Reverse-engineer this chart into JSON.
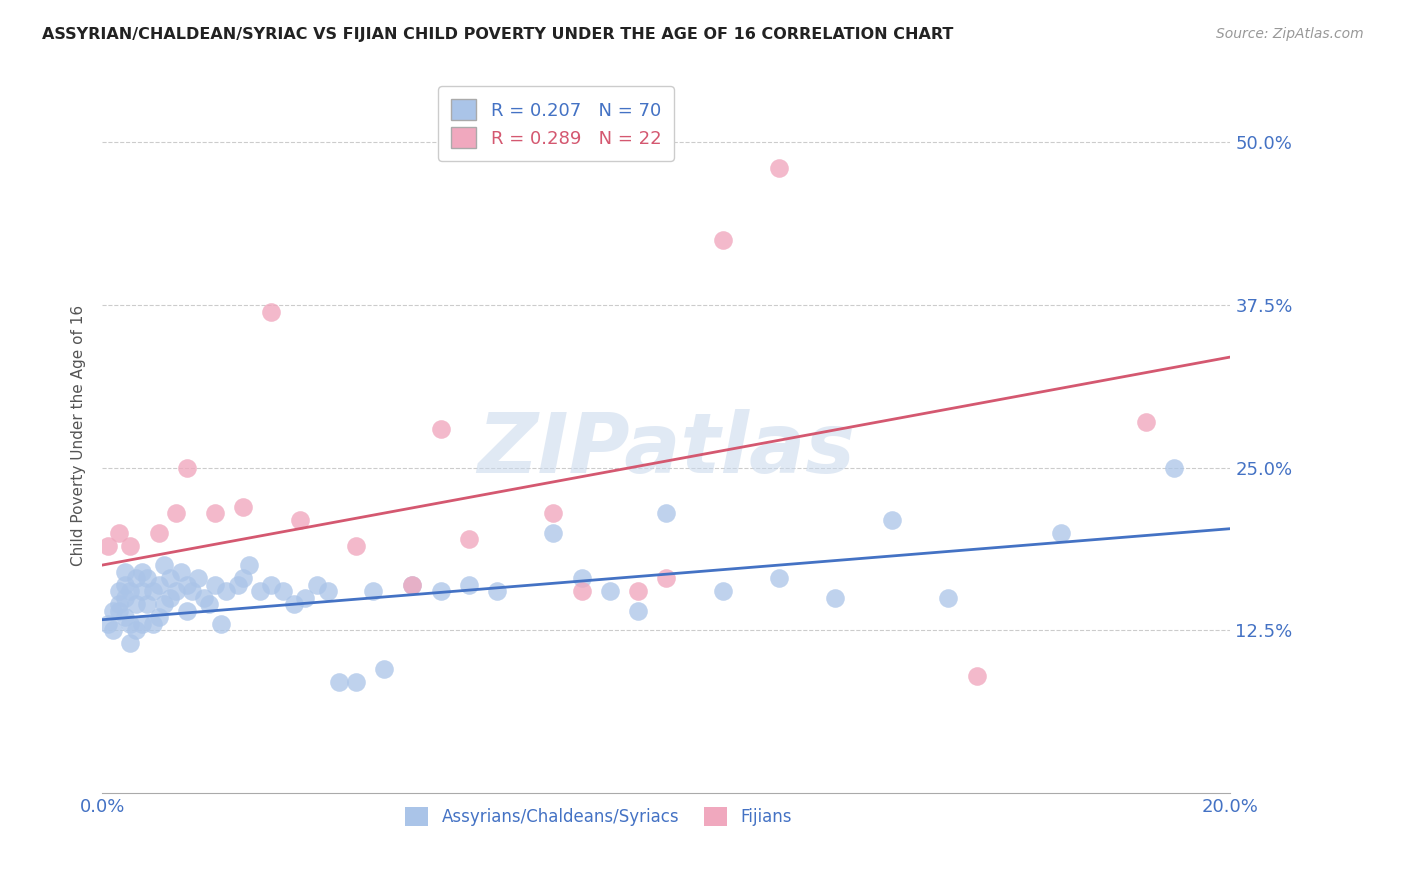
{
  "title": "ASSYRIAN/CHALDEAN/SYRIAC VS FIJIAN CHILD POVERTY UNDER THE AGE OF 16 CORRELATION CHART",
  "source": "Source: ZipAtlas.com",
  "ylabel": "Child Poverty Under the Age of 16",
  "ytick_labels": [
    "12.5%",
    "25.0%",
    "37.5%",
    "50.0%"
  ],
  "ytick_values": [
    0.125,
    0.25,
    0.375,
    0.5
  ],
  "xlim": [
    0.0,
    0.2
  ],
  "ylim": [
    0.0,
    0.55
  ],
  "blue_R": 0.207,
  "blue_N": 70,
  "pink_R": 0.289,
  "pink_N": 22,
  "blue_color": "#aac4e8",
  "pink_color": "#f0a8be",
  "blue_line_color": "#4472C4",
  "pink_line_color": "#d45870",
  "legend_label_blue": "Assyrians/Chaldeans/Syriacs",
  "legend_label_pink": "Fijians",
  "watermark": "ZIPatlas",
  "blue_scatter_x": [
    0.001,
    0.002,
    0.002,
    0.003,
    0.003,
    0.003,
    0.004,
    0.004,
    0.004,
    0.004,
    0.005,
    0.005,
    0.005,
    0.006,
    0.006,
    0.006,
    0.007,
    0.007,
    0.007,
    0.008,
    0.008,
    0.009,
    0.009,
    0.01,
    0.01,
    0.011,
    0.011,
    0.012,
    0.012,
    0.013,
    0.014,
    0.015,
    0.015,
    0.016,
    0.017,
    0.018,
    0.019,
    0.02,
    0.021,
    0.022,
    0.024,
    0.025,
    0.026,
    0.028,
    0.03,
    0.032,
    0.034,
    0.036,
    0.038,
    0.04,
    0.042,
    0.045,
    0.048,
    0.05,
    0.055,
    0.06,
    0.065,
    0.07,
    0.08,
    0.085,
    0.09,
    0.095,
    0.1,
    0.11,
    0.12,
    0.13,
    0.14,
    0.15,
    0.17,
    0.19
  ],
  "blue_scatter_y": [
    0.13,
    0.14,
    0.125,
    0.14,
    0.145,
    0.155,
    0.135,
    0.15,
    0.16,
    0.17,
    0.115,
    0.13,
    0.155,
    0.125,
    0.145,
    0.165,
    0.13,
    0.155,
    0.17,
    0.145,
    0.165,
    0.13,
    0.155,
    0.135,
    0.16,
    0.145,
    0.175,
    0.15,
    0.165,
    0.155,
    0.17,
    0.14,
    0.16,
    0.155,
    0.165,
    0.15,
    0.145,
    0.16,
    0.13,
    0.155,
    0.16,
    0.165,
    0.175,
    0.155,
    0.16,
    0.155,
    0.145,
    0.15,
    0.16,
    0.155,
    0.085,
    0.085,
    0.155,
    0.095,
    0.16,
    0.155,
    0.16,
    0.155,
    0.2,
    0.165,
    0.155,
    0.14,
    0.215,
    0.155,
    0.165,
    0.15,
    0.21,
    0.15,
    0.2,
    0.25
  ],
  "pink_scatter_x": [
    0.001,
    0.003,
    0.005,
    0.01,
    0.013,
    0.015,
    0.02,
    0.025,
    0.03,
    0.035,
    0.045,
    0.055,
    0.06,
    0.065,
    0.08,
    0.085,
    0.095,
    0.1,
    0.11,
    0.12,
    0.155,
    0.185
  ],
  "pink_scatter_y": [
    0.19,
    0.2,
    0.19,
    0.2,
    0.215,
    0.25,
    0.215,
    0.22,
    0.37,
    0.21,
    0.19,
    0.16,
    0.28,
    0.195,
    0.215,
    0.155,
    0.155,
    0.165,
    0.425,
    0.48,
    0.09,
    0.285
  ],
  "blue_line_intercept": 0.133,
  "blue_line_slope": 0.35,
  "pink_line_intercept": 0.175,
  "pink_line_slope": 0.8
}
